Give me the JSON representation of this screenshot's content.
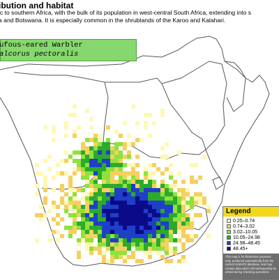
{
  "section_heading": "ibution and habitat",
  "paragraph": {
    "line1": "ic to southern Africa, with the bulk of its population in west-central South Africa, extending into s",
    "line2": "a and Botswana. It is especially common in the shrublands of the Karoo and Kalahari."
  },
  "species": {
    "common_name": "ufous-eared Warbler",
    "scientific_name": "alcorus pectoralis"
  },
  "legend": {
    "title": "Legend",
    "items": [
      {
        "label": "0.25–0.74",
        "color": "#fff8b4"
      },
      {
        "label": "0.74–3.02",
        "color": "#f5d060"
      },
      {
        "label": "3.02–10.05",
        "color": "#8fe23a"
      },
      {
        "label": "10.05–24.98",
        "color": "#2caa2c"
      },
      {
        "label": "24.98–48.45",
        "color": "#1f3fc8"
      },
      {
        "label": "48.45+",
        "color": "#0b0b8a"
      }
    ],
    "disclaimer": "This map is for illustrative purposes only, produced automatically from the current SABAP2 database, and may contain data which will subsequently be vetted during checking operations."
  },
  "colors": {
    "land": "#ffffff",
    "borders": "#555555",
    "sea": "#ffffff"
  }
}
